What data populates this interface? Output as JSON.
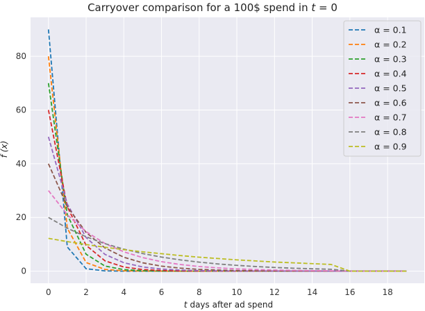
{
  "chart_data": {
    "type": "line",
    "title": "Carryover comparison for a 100$ spend in t = 0",
    "title_parts": {
      "prefix": "Carryover comparison for a 100$ spend in ",
      "var": "t",
      "suffix": " = 0"
    },
    "xlabel": "t days after ad spend",
    "xlabel_parts": {
      "var": "t",
      "rest": " days after ad spend"
    },
    "ylabel": "f (x)",
    "xlim": [
      -0.95,
      19.95
    ],
    "ylim": [
      -4.5,
      94.5
    ],
    "xticks": [
      0,
      2,
      4,
      6,
      8,
      10,
      12,
      14,
      16,
      18
    ],
    "yticks": [
      0,
      20,
      40,
      60,
      80
    ],
    "grid": true,
    "background": "#eaeaf2",
    "line_style": "dashed",
    "legend_position": "top-right",
    "x": [
      0,
      1,
      2,
      3,
      4,
      5,
      6,
      7,
      8,
      9,
      10,
      11,
      12,
      13,
      14,
      15,
      16,
      17,
      18,
      19
    ],
    "series": [
      {
        "name": "α = 0.1",
        "color": "#1f77b4",
        "values": [
          90,
          9,
          0.9,
          0.09,
          0.01,
          0,
          0,
          0,
          0,
          0,
          0,
          0,
          0,
          0,
          0,
          0,
          0,
          0,
          0,
          0
        ]
      },
      {
        "name": "α = 0.2",
        "color": "#ff7f0e",
        "values": [
          80,
          16,
          3.2,
          0.64,
          0.13,
          0.03,
          0.01,
          0,
          0,
          0,
          0,
          0,
          0,
          0,
          0,
          0,
          0,
          0,
          0,
          0
        ]
      },
      {
        "name": "α = 0.3",
        "color": "#2ca02c",
        "values": [
          70,
          21,
          6.3,
          1.89,
          0.57,
          0.17,
          0.05,
          0.02,
          0,
          0,
          0,
          0,
          0,
          0,
          0,
          0,
          0,
          0,
          0,
          0
        ]
      },
      {
        "name": "α = 0.4",
        "color": "#d62728",
        "values": [
          60,
          24,
          9.6,
          3.84,
          1.54,
          0.61,
          0.25,
          0.1,
          0.04,
          0.02,
          0.01,
          0,
          0,
          0,
          0,
          0,
          0,
          0,
          0,
          0
        ]
      },
      {
        "name": "α = 0.5",
        "color": "#9467bd",
        "values": [
          50,
          25,
          12.5,
          6.25,
          3.13,
          1.56,
          0.78,
          0.39,
          0.2,
          0.1,
          0.05,
          0.02,
          0.01,
          0,
          0,
          0,
          0,
          0,
          0,
          0
        ]
      },
      {
        "name": "α = 0.6",
        "color": "#8c564b",
        "values": [
          40,
          24,
          14.4,
          8.64,
          5.18,
          3.11,
          1.87,
          1.12,
          0.67,
          0.4,
          0.24,
          0.15,
          0.09,
          0.05,
          0.03,
          0.02,
          0,
          0,
          0,
          0
        ]
      },
      {
        "name": "α = 0.7",
        "color": "#e377c2",
        "values": [
          30,
          21,
          14.7,
          10.29,
          7.2,
          5.04,
          3.53,
          2.47,
          1.73,
          1.21,
          0.85,
          0.59,
          0.42,
          0.29,
          0.2,
          0.14,
          0,
          0,
          0,
          0
        ]
      },
      {
        "name": "α = 0.8",
        "color": "#7f7f7f",
        "values": [
          20,
          16,
          12.8,
          10.24,
          8.19,
          6.55,
          5.24,
          4.19,
          3.36,
          2.68,
          2.15,
          1.72,
          1.37,
          1.1,
          0.88,
          0.7,
          0,
          0,
          0,
          0
        ]
      },
      {
        "name": "α = 0.9",
        "color": "#bcbd22",
        "values": [
          12.2,
          11,
          9.9,
          8.9,
          8.0,
          7.2,
          6.5,
          5.8,
          5.2,
          4.7,
          4.2,
          3.8,
          3.4,
          3.1,
          2.8,
          2.5,
          0,
          0,
          0,
          0
        ]
      }
    ]
  }
}
